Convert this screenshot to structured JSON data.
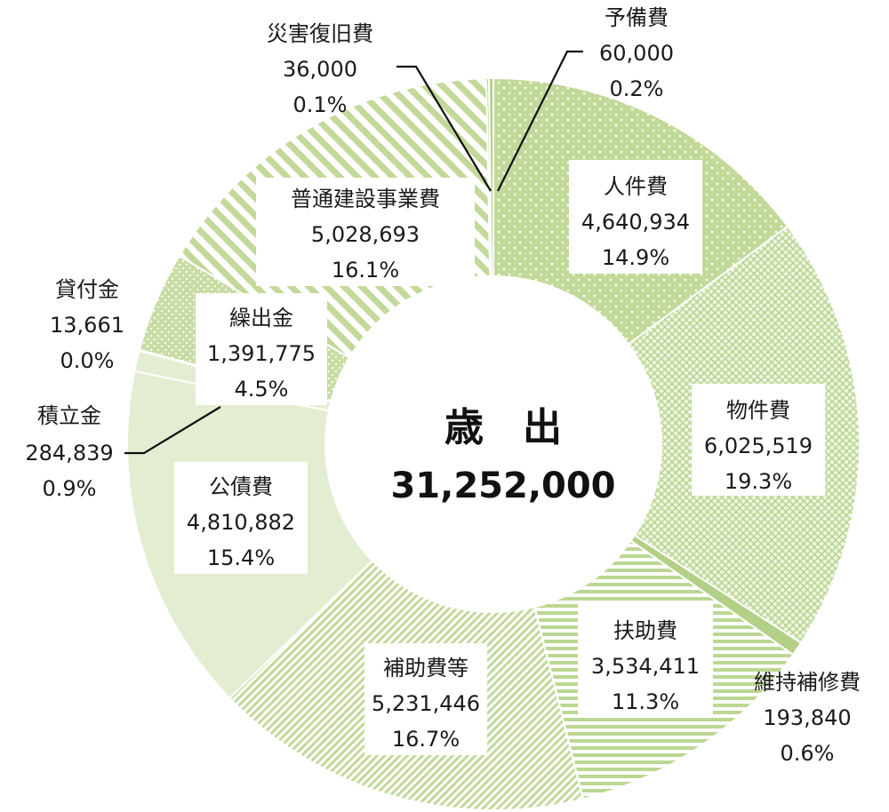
{
  "chart_data": {
    "type": "pie",
    "center": {
      "title": "歳　出",
      "total": "31,252,000"
    },
    "slices": [
      {
        "name": "人件費",
        "value": 4640934,
        "value_text": "4,640,934",
        "percent_text": "14.9%",
        "pattern": "dots-light"
      },
      {
        "name": "物件費",
        "value": 6025519,
        "value_text": "6,025,519",
        "percent_text": "19.3%",
        "pattern": "grid"
      },
      {
        "name": "維持補修費",
        "value": 193840,
        "value_text": "193,840",
        "percent_text": "0.6%",
        "pattern": "solid"
      },
      {
        "name": "扶助費",
        "value": 3534411,
        "value_text": "3,534,411",
        "percent_text": "11.3%",
        "pattern": "hstripes"
      },
      {
        "name": "補助費等",
        "value": 5231446,
        "value_text": "5,231,446",
        "percent_text": "16.7%",
        "pattern": "diag-fine"
      },
      {
        "name": "公債費",
        "value": 4810882,
        "value_text": "4,810,882",
        "percent_text": "15.4%",
        "pattern": "pale"
      },
      {
        "name": "積立金",
        "value": 284839,
        "value_text": "284,839",
        "percent_text": "0.9%",
        "pattern": "pale"
      },
      {
        "name": "貸付金",
        "value": 13661,
        "value_text": "13,661",
        "percent_text": "0.0%",
        "pattern": "grid"
      },
      {
        "name": "繰出金",
        "value": 1391775,
        "value_text": "1,391,775",
        "percent_text": "4.5%",
        "pattern": "dots-dense"
      },
      {
        "name": "普通建設事業費",
        "value": 5028693,
        "value_text": "5,028,693",
        "percent_text": "16.1%",
        "pattern": "diag-wide"
      },
      {
        "name": "災害復旧費",
        "value": 36000,
        "value_text": "36,000",
        "percent_text": "0.1%",
        "pattern": "solid"
      },
      {
        "name": "予備費",
        "value": 60000,
        "value_text": "60,000",
        "percent_text": "0.2%",
        "pattern": "solid"
      }
    ]
  }
}
